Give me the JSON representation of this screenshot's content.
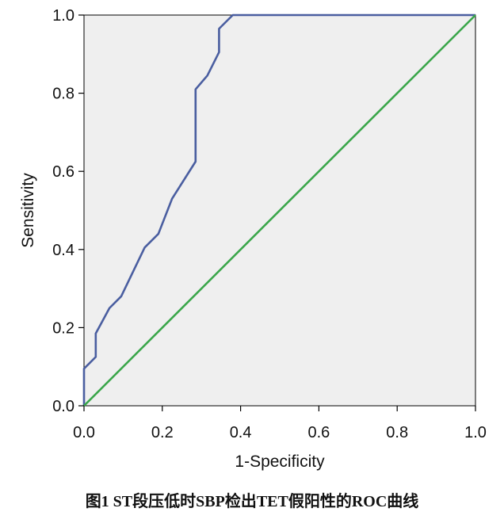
{
  "caption": "图1 ST段压低时SBP检出TET假阳性的ROC曲线",
  "chart_data": {
    "type": "line",
    "xlabel": "1-Specificity",
    "ylabel": "Sensitivity",
    "xlim": [
      0,
      1
    ],
    "ylim": [
      0,
      1
    ],
    "x_ticks": [
      "0.0",
      "0.2",
      "0.4",
      "0.6",
      "0.8",
      "1.0"
    ],
    "y_ticks": [
      "0.0",
      "0.2",
      "0.4",
      "0.6",
      "0.8",
      "1.0"
    ],
    "grid": false,
    "series": [
      {
        "color": "#4a5ea0",
        "x": [
          0,
          0,
          0.03,
          0.03,
          0.065,
          0.095,
          0.155,
          0.19,
          0.225,
          0.285,
          0.285,
          0.315,
          0.345,
          0.345,
          0.38,
          1.0
        ],
        "y": [
          0,
          0.095,
          0.125,
          0.185,
          0.25,
          0.28,
          0.405,
          0.44,
          0.53,
          0.625,
          0.81,
          0.845,
          0.905,
          0.965,
          1.0,
          1.0
        ]
      },
      {
        "color": "#3aa64a",
        "x": [
          0,
          1
        ],
        "y": [
          0,
          1
        ]
      }
    ]
  }
}
